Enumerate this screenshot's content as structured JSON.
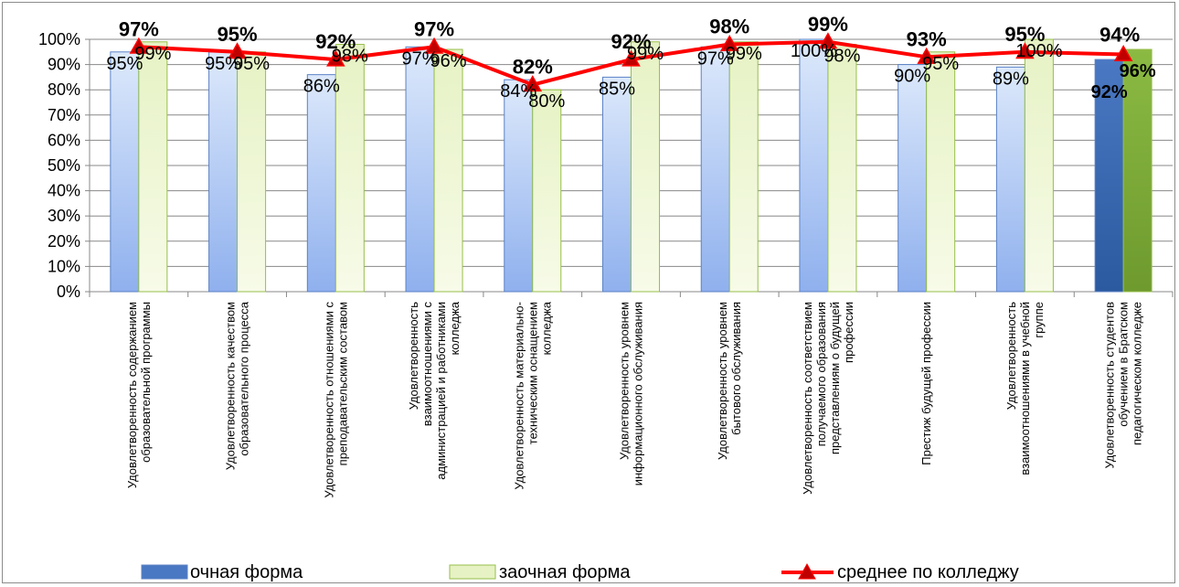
{
  "colors": {
    "ochnaya_fill_top": "#dde9fb",
    "ochnaya_fill_bottom": "#8fb0ee",
    "ochnaya_stroke": "#5b82c6",
    "ochnaya_highlight_top": "#4a78c2",
    "ochnaya_highlight_bottom": "#2c5aa0",
    "zaochnaya_fill_top": "#e6f2c4",
    "zaochnaya_fill_bottom": "#f7fbe8",
    "zaochnaya_stroke": "#97bf4a",
    "zaochnaya_highlight_top": "#8bba43",
    "zaochnaya_highlight_bottom": "#6e9a2e",
    "line": "#ff0000",
    "marker": "#c00000",
    "grid": "#888888"
  },
  "chart_data": {
    "type": "bar",
    "ylim": [
      0,
      100
    ],
    "y_ticks": [
      "0%",
      "10%",
      "20%",
      "30%",
      "40%",
      "50%",
      "60%",
      "70%",
      "80%",
      "90%",
      "100%"
    ],
    "grid": true,
    "legend_position": "bottom",
    "categories": [
      [
        "Удовлетворенность содержанием",
        "образовательной программы"
      ],
      [
        "Удовлетворенность качеством",
        "образовательного процесса"
      ],
      [
        "Удовлетворенность отношениями с",
        "преподавательским составом"
      ],
      [
        "Удовлетворенность",
        "взаимоотношениями с",
        "администрацией и работниками",
        "колледжа"
      ],
      [
        "Удовлетворенность материально-",
        "техническим оснащением",
        "колледжа"
      ],
      [
        "Удовлетворенность уровнем",
        "информационного обслуживания"
      ],
      [
        "Удовлетворенность уровнем",
        "бытового обслуживания"
      ],
      [
        "Удовлетворенность соответствием",
        "получаемого образования",
        "представлениям о будущей",
        "профессии"
      ],
      [
        "Престиж будущей профессии"
      ],
      [
        "Удовлетворенность",
        "взаимоотношениями в учебной",
        "группе"
      ],
      [
        "Удовлетворенность студентов",
        "обучением в Братском",
        "педагогическом колледже"
      ]
    ],
    "series": [
      {
        "name": "очная форма",
        "type": "bar",
        "values": [
          95,
          95,
          86,
          97,
          84,
          85,
          97,
          100,
          90,
          89,
          92
        ],
        "labels": [
          "95%",
          "95%",
          "86%",
          "97%",
          "84%",
          "85%",
          "97%",
          "100%",
          "90%",
          "89%",
          "92%"
        ]
      },
      {
        "name": "заочная форма",
        "type": "bar",
        "values": [
          99,
          95,
          98,
          96,
          80,
          99,
          99,
          98,
          95,
          100,
          96
        ],
        "labels": [
          "99%",
          "95%",
          "98%",
          "96%",
          "80%",
          "99%",
          "99%",
          "98%",
          "95%",
          "100%",
          "96%"
        ]
      },
      {
        "name": "среднее по колледжу",
        "type": "line",
        "values": [
          97,
          95,
          92,
          97,
          82,
          92,
          98,
          99,
          93,
          95,
          94
        ],
        "labels": [
          "97%",
          "95%",
          "92%",
          "97%",
          "82%",
          "92%",
          "98%",
          "99%",
          "93%",
          "95%",
          "94%"
        ]
      }
    ]
  }
}
